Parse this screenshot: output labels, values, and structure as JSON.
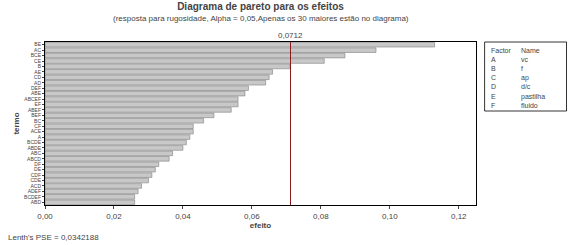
{
  "chart_data": {
    "type": "bar",
    "orientation": "horizontal",
    "title": "Diagrama de pareto para os efeitos",
    "subtitle": "(resposta para rugosidade, Alpha = 0,05,Apenas os 30 maiores estão no diagrama)",
    "x_label": "efeito",
    "y_label": "termo",
    "categories": [
      "BE",
      "AC",
      "BCE",
      "CE",
      "B",
      "AE",
      "CD",
      "AD",
      "DEF",
      "ABE",
      "ABCEF",
      "EF",
      "ABEF",
      "BEF",
      "BC",
      "CF",
      "ACE",
      "A",
      "BCDE",
      "ABDE",
      "ABC",
      "ABCD",
      "DF",
      "DE",
      "CDF",
      "CDE",
      "ACD",
      "ADEF",
      "BCDEF",
      "ABD"
    ],
    "values": [
      0.113,
      0.096,
      0.087,
      0.081,
      0.071,
      0.066,
      0.065,
      0.064,
      0.059,
      0.058,
      0.056,
      0.056,
      0.054,
      0.049,
      0.046,
      0.043,
      0.043,
      0.042,
      0.041,
      0.04,
      0.037,
      0.036,
      0.033,
      0.032,
      0.031,
      0.03,
      0.028,
      0.027,
      0.026,
      0.026
    ],
    "color": "#c8c8c8",
    "xlim": [
      0,
      0.125
    ],
    "xticks": [
      {
        "value": 0,
        "label": "0,00"
      },
      {
        "value": 0.02,
        "label": "0,02"
      },
      {
        "value": 0.04,
        "label": "0,04"
      },
      {
        "value": 0.06,
        "label": "0,06"
      },
      {
        "value": 0.08,
        "label": "0,08"
      },
      {
        "value": 0.1,
        "label": "0,10"
      },
      {
        "value": 0.12,
        "label": "0,12"
      }
    ],
    "grid": false,
    "reference_line": {
      "value": 0.0712,
      "label": "0,0712",
      "color": "#8b1a1a"
    },
    "factor_table": {
      "header": [
        "Factor",
        "Name"
      ],
      "rows": [
        [
          "A",
          "vc"
        ],
        [
          "B",
          "f"
        ],
        [
          "C",
          "ap"
        ],
        [
          "D",
          "d/c"
        ],
        [
          "E",
          "pastilha"
        ],
        [
          "F",
          "fluido"
        ]
      ]
    },
    "note": "Lenth's PSE = 0,0342188"
  }
}
